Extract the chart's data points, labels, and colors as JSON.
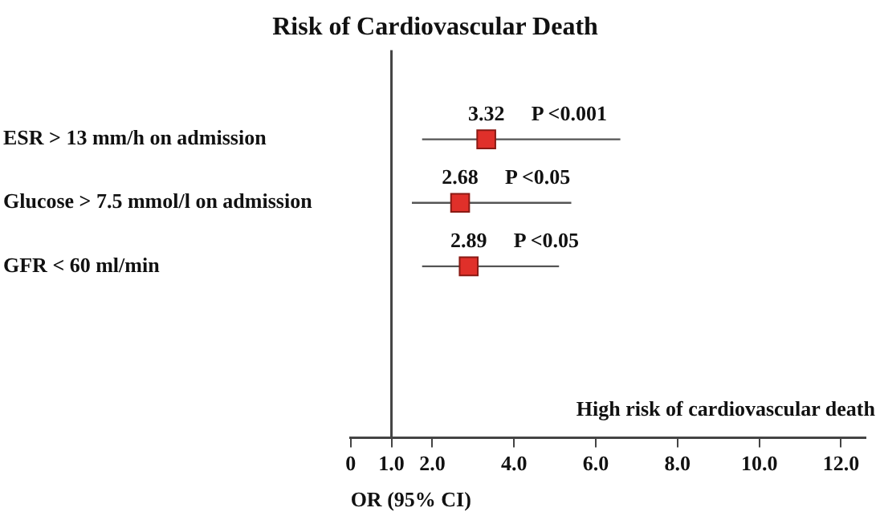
{
  "chart_data": {
    "type": "scatter",
    "orientation": "horizontal",
    "title": "Risk of Cardiovascular Death",
    "xlabel": "OR (95% CI)",
    "categories": [
      "ESR > 13 mm/h on admission",
      "Glucose > 7.5 mmol/l on admission",
      "GFR < 60 ml/min"
    ],
    "values": [
      3.32,
      2.68,
      2.89
    ],
    "errors": [
      [
        1.75,
        6.6
      ],
      [
        1.5,
        5.4
      ],
      [
        1.75,
        5.1
      ]
    ],
    "color": "#e0302a",
    "marker": "square",
    "data_labels": true,
    "xlim": [
      0,
      12.6
    ],
    "xticks": [
      0,
      {
        "value": 1,
        "label": "1.0"
      },
      {
        "value": 2,
        "label": "2.0"
      },
      {
        "value": 4,
        "label": "4.0"
      },
      {
        "value": 6,
        "label": "6.0"
      },
      {
        "value": 8,
        "label": "8.0"
      },
      {
        "value": 10,
        "label": "10.0"
      },
      {
        "value": 12,
        "label": "12.0"
      }
    ],
    "ref_lines": [
      {
        "axis": "x",
        "value": 1
      }
    ],
    "annotations": [
      "P <0.001",
      "P <0.05",
      "P <0.05",
      "High risk of cardiovascular death"
    ],
    "grid": false,
    "legend": false
  }
}
